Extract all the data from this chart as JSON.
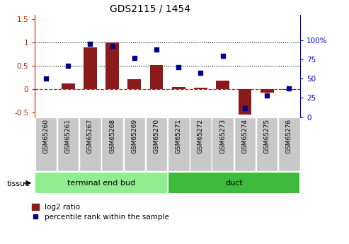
{
  "title": "GDS2115 / 1454",
  "samples": [
    "GSM65260",
    "GSM65261",
    "GSM65267",
    "GSM65268",
    "GSM65269",
    "GSM65270",
    "GSM65271",
    "GSM65272",
    "GSM65273",
    "GSM65274",
    "GSM65275",
    "GSM65276"
  ],
  "log2_ratio": [
    0.0,
    0.12,
    0.9,
    1.01,
    0.22,
    0.51,
    0.04,
    0.03,
    0.19,
    -0.55,
    -0.08,
    -0.02
  ],
  "percentile_rank": [
    50,
    67,
    95,
    93,
    77,
    88,
    65,
    58,
    80,
    12,
    28,
    37
  ],
  "tissue_groups": [
    {
      "label": "terminal end bud",
      "start": 0,
      "end": 6,
      "color": "#90ee90"
    },
    {
      "label": "duct",
      "start": 6,
      "end": 12,
      "color": "#3dbb3d"
    }
  ],
  "bar_color": "#8b1a1a",
  "dot_color": "#00008b",
  "ylim_left": [
    -0.6,
    1.6
  ],
  "ylim_right": [
    0,
    133.33
  ],
  "yticks_left": [
    -0.5,
    0.0,
    0.5,
    1.0,
    1.5
  ],
  "ytick_labels_left": [
    "-0.5",
    "0",
    "0.5",
    "1",
    "1.5"
  ],
  "yticks_right_pct": [
    0,
    25,
    50,
    75,
    100
  ],
  "ytick_labels_right": [
    "0",
    "25",
    "50",
    "75",
    "100%"
  ],
  "hlines": [
    0.5,
    1.0
  ],
  "dashed_line": 0.0,
  "legend_bar_label": "log2 ratio",
  "legend_dot_label": "percentile rank within the sample",
  "tissue_label": "tissue",
  "left_color": "#cc2200",
  "right_color": "#0000cc",
  "sample_box_color": "#c8c8c8",
  "plot_bg_color": "#ffffff"
}
